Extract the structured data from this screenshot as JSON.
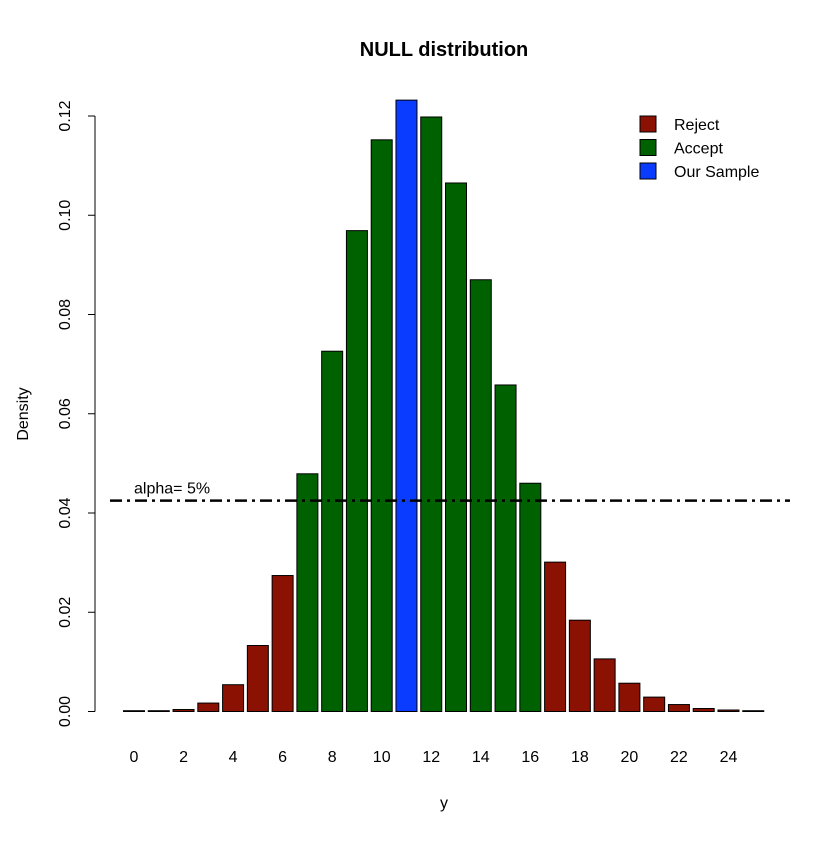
{
  "chart_data": {
    "type": "bar",
    "title": "NULL distribution",
    "xlabel": "y",
    "ylabel": "Density",
    "categories": [
      0,
      1,
      2,
      3,
      4,
      5,
      6,
      7,
      8,
      9,
      10,
      11,
      12,
      13,
      14,
      15,
      16,
      17,
      18,
      19,
      20,
      21,
      22,
      23,
      24,
      25
    ],
    "x_tick_labels": [
      "0",
      "2",
      "4",
      "6",
      "8",
      "10",
      "12",
      "14",
      "16",
      "18",
      "20",
      "22",
      "24"
    ],
    "y_tick_labels": [
      "0.00",
      "0.02",
      "0.04",
      "0.06",
      "0.08",
      "0.10",
      "0.12"
    ],
    "ylim": [
      0,
      0.124
    ],
    "values": [
      0.0,
      0.0001,
      0.0004,
      0.0017,
      0.0054,
      0.0133,
      0.0274,
      0.0479,
      0.0726,
      0.0969,
      0.1152,
      0.1232,
      0.1198,
      0.1065,
      0.087,
      0.0658,
      0.046,
      0.0301,
      0.0184,
      0.0106,
      0.0057,
      0.0029,
      0.0014,
      0.0006,
      0.0003,
      0.0001
    ],
    "groups": [
      "Reject",
      "Reject",
      "Reject",
      "Reject",
      "Reject",
      "Reject",
      "Reject",
      "Accept",
      "Accept",
      "Accept",
      "Accept",
      "Our Sample",
      "Accept",
      "Accept",
      "Accept",
      "Accept",
      "Accept",
      "Reject",
      "Reject",
      "Reject",
      "Reject",
      "Reject",
      "Reject",
      "Reject",
      "Reject",
      "Reject"
    ],
    "legend": {
      "position": "top-right",
      "items": [
        {
          "label": "Reject",
          "color": "#8b1103"
        },
        {
          "label": "Accept",
          "color": "#006100"
        },
        {
          "label": "Our Sample",
          "color": "#0a3cff"
        }
      ]
    },
    "threshold": {
      "value": 0.0425,
      "label": "alpha= 5%",
      "style": "dash-dot"
    },
    "grid": false
  }
}
